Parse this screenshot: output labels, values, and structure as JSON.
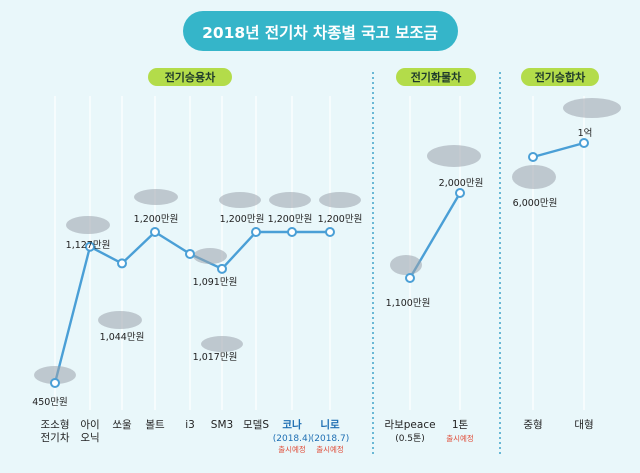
{
  "title": "2018년 전기차 차종별 국고 보조금",
  "chart_data": [
    {
      "type": "line",
      "group_label": "전기승용차",
      "categories": [
        {
          "name": "조소형\n전기차",
          "sub": "",
          "note": "",
          "highlight": false
        },
        {
          "name": "아이\n오닉",
          "sub": "",
          "note": "",
          "highlight": false
        },
        {
          "name": "쏘울",
          "sub": "",
          "note": "",
          "highlight": false
        },
        {
          "name": "볼트",
          "sub": "",
          "note": "",
          "highlight": false
        },
        {
          "name": "i3",
          "sub": "",
          "note": "",
          "highlight": false
        },
        {
          "name": "SM3",
          "sub": "",
          "note": "",
          "highlight": false
        },
        {
          "name": "모델S",
          "sub": "",
          "note": "",
          "highlight": false
        },
        {
          "name": "코나",
          "sub": "(2018.4)",
          "note": "출시예정",
          "highlight": true
        },
        {
          "name": "니로",
          "sub": "(2018.7)",
          "note": "출시예정",
          "highlight": true
        }
      ],
      "values": [
        450,
        1127,
        1044,
        1200,
        1091,
        1017,
        1200,
        1200,
        1200
      ],
      "labels": [
        "450만원",
        "1,127만원",
        "1,044만원",
        "1,200만원",
        "1,091만원",
        "1,017만원",
        "1,200만원",
        "1,200만원",
        "1,200만원"
      ],
      "unit": "만원"
    },
    {
      "type": "line",
      "group_label": "전기화물차",
      "categories": [
        {
          "name": "라보peace",
          "sub": "(0.5톤)",
          "note": "",
          "highlight": false
        },
        {
          "name": "1톤",
          "sub": "",
          "note": "출시예정",
          "highlight": false
        }
      ],
      "values": [
        1100,
        2000
      ],
      "labels": [
        "1,100만원",
        "2,000만원"
      ],
      "unit": "만원"
    },
    {
      "type": "line",
      "group_label": "전기승합차",
      "categories": [
        {
          "name": "중형",
          "sub": "",
          "note": "",
          "highlight": false
        },
        {
          "name": "대형",
          "sub": "",
          "note": "",
          "highlight": false
        }
      ],
      "values": [
        6000,
        10000
      ],
      "labels": [
        "6,000만원",
        "1억"
      ],
      "unit": "만원"
    }
  ],
  "colors": {
    "background": "#e9f7fa",
    "title_pill": "#35b5c9",
    "line": "#4a9fd6",
    "group_pill": "#b3dc4a",
    "highlight_text": "#1f6fb3",
    "note_text": "#e0503c",
    "divider": "#4aa9cc"
  }
}
